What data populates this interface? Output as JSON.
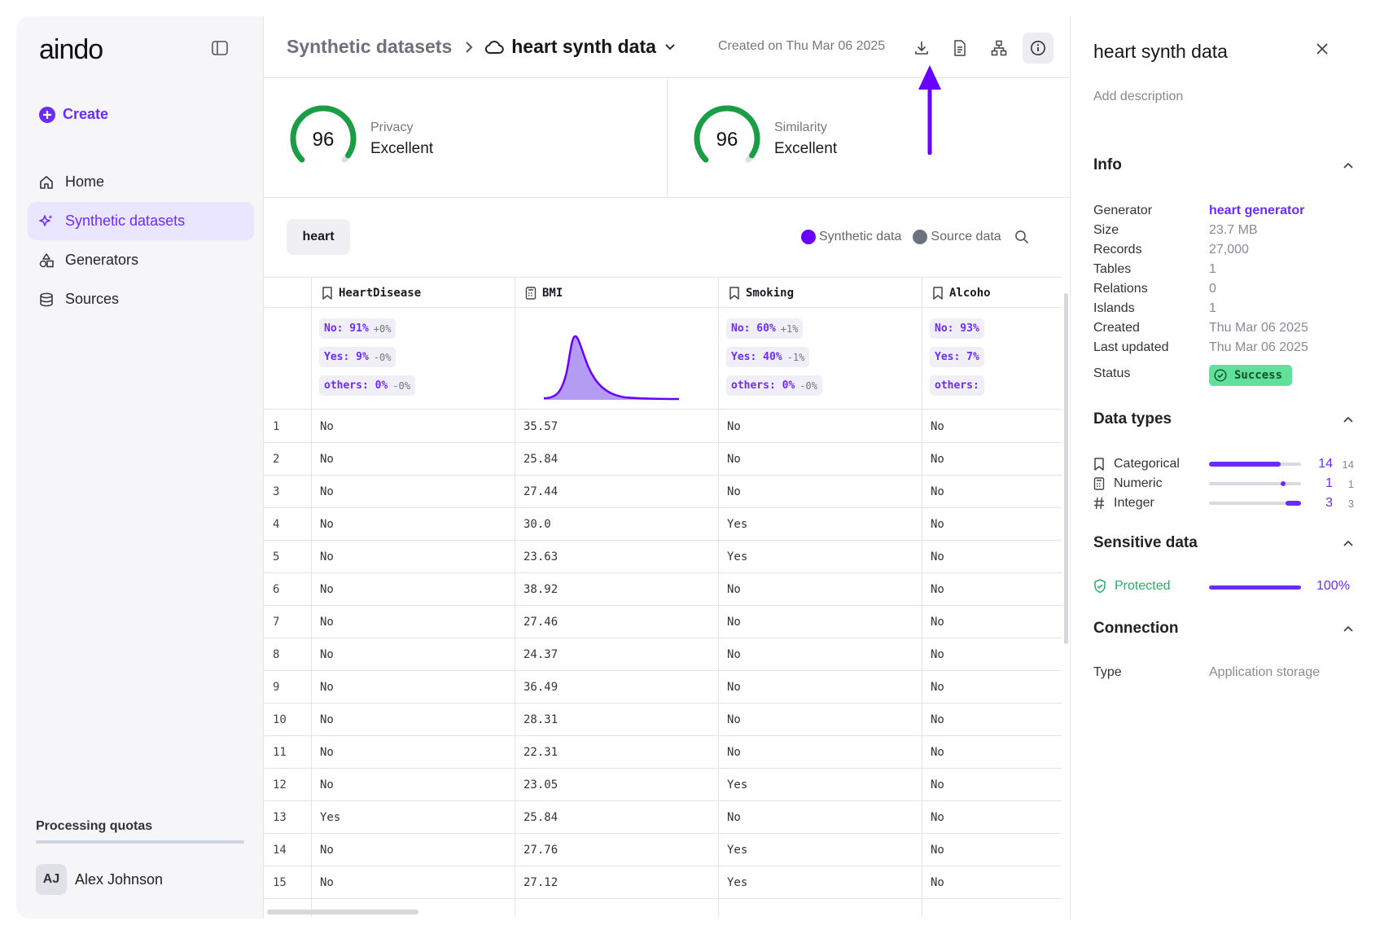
{
  "sidebar": {
    "logo": "aindo",
    "create_label": "Create",
    "nav": [
      {
        "label": "Home",
        "icon": "home-icon",
        "active": false
      },
      {
        "label": "Synthetic datasets",
        "icon": "sparkles-icon",
        "active": true
      },
      {
        "label": "Generators",
        "icon": "shapes-icon",
        "active": false
      },
      {
        "label": "Sources",
        "icon": "database-icon",
        "active": false
      }
    ],
    "quota_label": "Processing quotas",
    "user": {
      "initials": "AJ",
      "name": "Alex Johnson"
    }
  },
  "header": {
    "breadcrumb_root": "Synthetic datasets",
    "dataset_name": "heart synth data",
    "created": "Created on Thu Mar 06 2025",
    "icons": [
      "download-icon",
      "report-icon",
      "relations-icon",
      "info-icon"
    ]
  },
  "scores": [
    {
      "value": "96",
      "label": "Privacy",
      "rating": "Excellent",
      "fraction": 0.96
    },
    {
      "value": "96",
      "label": "Similarity",
      "rating": "Excellent",
      "fraction": 0.96
    }
  ],
  "table": {
    "tab": "heart",
    "legend": {
      "synthetic": "Synthetic data",
      "source": "Source data"
    },
    "columns": [
      {
        "name": "HeartDisease",
        "type": "categorical",
        "pills": [
          {
            "cat": "No: 91%",
            "delta": "+0%"
          },
          {
            "cat": "Yes: 9%",
            "delta": "-0%"
          },
          {
            "cat": "others: 0%",
            "delta": "-0%"
          }
        ]
      },
      {
        "name": "BMI",
        "type": "numeric"
      },
      {
        "name": "Smoking",
        "type": "categorical",
        "pills": [
          {
            "cat": "No: 60%",
            "delta": "+1%"
          },
          {
            "cat": "Yes: 40%",
            "delta": "-1%"
          },
          {
            "cat": "others: 0%",
            "delta": "-0%"
          }
        ]
      },
      {
        "name": "Alcoho",
        "type": "categorical",
        "pills": [
          {
            "cat": "No: 93%",
            "delta": ""
          },
          {
            "cat": "Yes: 7%",
            "delta": ""
          },
          {
            "cat": "others:",
            "delta": ""
          }
        ]
      }
    ],
    "rows": [
      [
        "1",
        "No",
        "35.57",
        "No",
        "No"
      ],
      [
        "2",
        "No",
        "25.84",
        "No",
        "No"
      ],
      [
        "3",
        "No",
        "27.44",
        "No",
        "No"
      ],
      [
        "4",
        "No",
        "30.0",
        "Yes",
        "No"
      ],
      [
        "5",
        "No",
        "23.63",
        "Yes",
        "No"
      ],
      [
        "6",
        "No",
        "38.92",
        "No",
        "No"
      ],
      [
        "7",
        "No",
        "27.46",
        "No",
        "No"
      ],
      [
        "8",
        "No",
        "24.37",
        "No",
        "No"
      ],
      [
        "9",
        "No",
        "36.49",
        "No",
        "No"
      ],
      [
        "10",
        "No",
        "28.31",
        "No",
        "No"
      ],
      [
        "11",
        "No",
        "22.31",
        "No",
        "No"
      ],
      [
        "12",
        "No",
        "23.05",
        "Yes",
        "No"
      ],
      [
        "13",
        "Yes",
        "25.84",
        "No",
        "No"
      ],
      [
        "14",
        "No",
        "27.76",
        "Yes",
        "No"
      ],
      [
        "15",
        "No",
        "27.12",
        "Yes",
        "No"
      ]
    ]
  },
  "panel": {
    "title": "heart synth data",
    "add_description": "Add description",
    "info_title": "Info",
    "info": [
      {
        "key": "Generator",
        "value": "heart generator",
        "link": true
      },
      {
        "key": "Size",
        "value": "23.7 MB"
      },
      {
        "key": "Records",
        "value": "27,000"
      },
      {
        "key": "Tables",
        "value": "1"
      },
      {
        "key": "Relations",
        "value": "0"
      },
      {
        "key": "Islands",
        "value": "1"
      },
      {
        "key": "Created",
        "value": "Thu Mar 06 2025"
      },
      {
        "key": "Last updated",
        "value": "Thu Mar 06 2025"
      }
    ],
    "status_key": "Status",
    "status_value": "Success",
    "data_types_title": "Data types",
    "data_types": [
      {
        "label": "Categorical",
        "icon": "bookmark-icon",
        "count": "14",
        "total": "14"
      },
      {
        "label": "Numeric",
        "icon": "calculator-icon",
        "count": "1",
        "total": "1"
      },
      {
        "label": "Integer",
        "icon": "hash-icon",
        "count": "3",
        "total": "3"
      }
    ],
    "sensitive_title": "Sensitive data",
    "protected_label": "Protected",
    "protected_pct": "100%",
    "connection_title": "Connection",
    "connection": {
      "key": "Type",
      "value": "Application storage"
    }
  },
  "colors": {
    "accent": "#6a2cff",
    "success": "#60e09a",
    "gauge": "#1a9e45",
    "source": "#6b7280"
  }
}
